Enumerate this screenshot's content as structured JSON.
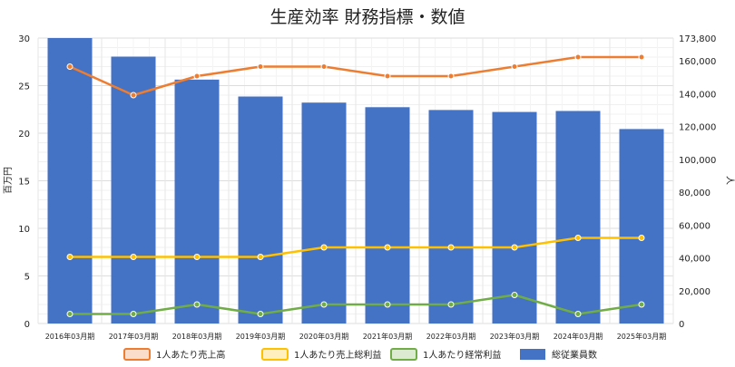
{
  "chart_data": {
    "type": "bar",
    "title": "生産効率 財務指標・数値",
    "categories": [
      "2016年03月期",
      "2017年03月期",
      "2018年03月期",
      "2019年03月期",
      "2020年03月期",
      "2021年03月期",
      "2022年03月期",
      "2023年03月期",
      "2024年03月期",
      "2025年03月期"
    ],
    "ylabel_left": "百万円",
    "ylabel_right": "人",
    "ylim_left": [
      0,
      30
    ],
    "yticks_left": [
      "0",
      "5",
      "10",
      "15",
      "20",
      "25",
      "30"
    ],
    "ylim_right": [
      0,
      173800
    ],
    "yticks_right": [
      "0",
      "20,000",
      "40,000",
      "60,000",
      "80,000",
      "100,000",
      "120,000",
      "140,000",
      "160,000",
      "173,800"
    ],
    "grid": true,
    "legend_position": "bottom",
    "series": [
      {
        "name": "1人あたり売上高",
        "type": "line",
        "axis": "left",
        "color": "#ed7d31",
        "values": [
          27,
          24,
          26,
          27,
          27,
          26,
          26,
          27,
          28,
          28
        ]
      },
      {
        "name": "1人あたり売上総利益",
        "type": "line",
        "axis": "left",
        "color": "#ffc000",
        "values": [
          7,
          7,
          7,
          7,
          8,
          8,
          8,
          8,
          9,
          9
        ]
      },
      {
        "name": "1人あたり経常利益",
        "type": "line",
        "axis": "left",
        "color": "#70ad47",
        "values": [
          1,
          1,
          2,
          1,
          2,
          2,
          2,
          3,
          1,
          2
        ]
      },
      {
        "name": "総従業員数",
        "type": "bar",
        "axis": "right",
        "color": "#4472c4",
        "values": [
          173800,
          162500,
          148500,
          138200,
          134500,
          131700,
          130000,
          128800,
          129400,
          118400
        ]
      }
    ]
  }
}
